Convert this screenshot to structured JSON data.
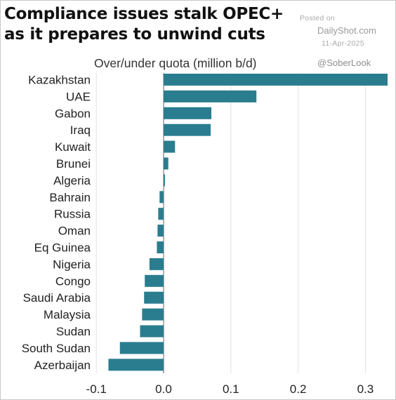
{
  "title_lines": [
    "Compliance issues stalk OPEC+",
    "as it prepares to unwind cuts"
  ],
  "watermark": {
    "posted": "Posted on",
    "site": "DailyShot.com",
    "date": "11-Apr-2025",
    "handle": "@SoberLook"
  },
  "colors": {
    "bar": "#2a7d8f",
    "grid": "#e2e2e2",
    "axis": "#666666"
  },
  "chart_data": {
    "type": "bar",
    "orientation": "horizontal",
    "title": "Compliance issues stalk OPEC+ as it prepares to unwind cuts",
    "subtitle": "Over/under quota (million b/d)",
    "categories": [
      "Kazakhstan",
      "UAE",
      "Gabon",
      "Iraq",
      "Kuwait",
      "Brunei",
      "Algeria",
      "Bahrain",
      "Russia",
      "Oman",
      "Eq Guinea",
      "Nigeria",
      "Congo",
      "Saudi Arabia",
      "Malaysia",
      "Sudan",
      "South Sudan",
      "Azerbaijan"
    ],
    "values": [
      0.333,
      0.138,
      0.071,
      0.07,
      0.017,
      0.007,
      0.002,
      -0.006,
      -0.008,
      -0.009,
      -0.01,
      -0.021,
      -0.028,
      -0.029,
      -0.032,
      -0.035,
      -0.065,
      -0.082
    ],
    "xlim": [
      -0.1,
      0.33
    ],
    "xticks": [
      -0.1,
      0.0,
      0.1,
      0.2,
      0.3
    ],
    "xtick_labels": [
      "-0.1",
      "0.0",
      "0.1",
      "0.2",
      "0.3"
    ],
    "grid": "vertical"
  }
}
